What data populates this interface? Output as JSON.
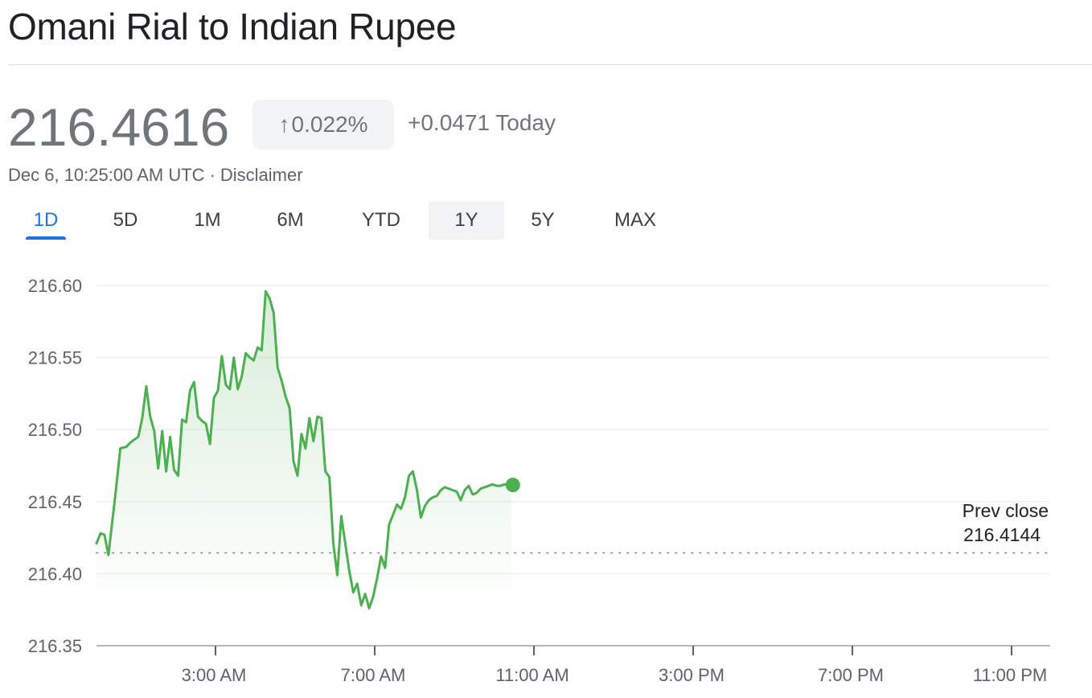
{
  "header": {
    "title": "Omani Rial to Indian Rupee"
  },
  "quote": {
    "price": "216.4616",
    "change_arrow": "↑",
    "change_percent": "0.022%",
    "change_abs": "+0.0471 Today",
    "timestamp": "Dec 6, 10:25:00 AM UTC",
    "separator": "·",
    "disclaimer": "Disclaimer",
    "change_color": "#70757a"
  },
  "ranges": [
    {
      "label": "1D",
      "state": "active"
    },
    {
      "label": "5D",
      "state": ""
    },
    {
      "label": "1M",
      "state": ""
    },
    {
      "label": "6M",
      "state": ""
    },
    {
      "label": "YTD",
      "state": ""
    },
    {
      "label": "1Y",
      "state": "highlighted"
    },
    {
      "label": "5Y",
      "state": ""
    },
    {
      "label": "MAX",
      "state": ""
    }
  ],
  "chart_data": {
    "type": "area",
    "line_color": "#4caf50",
    "accent_color": "#1a73e8",
    "ylim": [
      216.35,
      216.6
    ],
    "yticks": [
      "216.60",
      "216.55",
      "216.50",
      "216.45",
      "216.40",
      "216.35"
    ],
    "ytick_values": [
      216.6,
      216.55,
      216.5,
      216.45,
      216.4,
      216.35
    ],
    "xlim": [
      0,
      24
    ],
    "xticks": [
      "3:00 AM",
      "7:00 AM",
      "11:00 AM",
      "3:00 PM",
      "7:00 PM",
      "11:00 PM"
    ],
    "xtick_values": [
      3,
      7,
      11,
      15,
      19,
      23
    ],
    "prev_close_label": "Prev close",
    "prev_close_value": "216.4144",
    "prev_close": 216.4144,
    "series": [
      {
        "x": [
          0.0,
          0.1,
          0.2,
          0.3,
          0.45,
          0.6,
          0.75,
          0.85,
          0.95,
          1.05,
          1.15,
          1.25,
          1.35,
          1.45,
          1.55,
          1.65,
          1.75,
          1.85,
          1.95,
          2.05,
          2.15,
          2.25,
          2.35,
          2.45,
          2.55,
          2.65,
          2.75,
          2.85,
          2.95,
          3.05,
          3.15,
          3.25,
          3.35,
          3.45,
          3.55,
          3.65,
          3.75,
          3.85,
          3.95,
          4.05,
          4.15,
          4.25,
          4.35,
          4.45,
          4.55,
          4.65,
          4.75,
          4.85,
          4.95,
          5.05,
          5.15,
          5.25,
          5.35,
          5.45,
          5.55,
          5.65,
          5.75,
          5.85,
          5.95,
          6.05,
          6.15,
          6.25,
          6.35,
          6.45,
          6.55,
          6.65,
          6.75,
          6.85,
          6.95,
          7.05,
          7.15,
          7.25,
          7.35,
          7.45,
          7.55,
          7.65,
          7.75,
          7.85,
          7.95,
          8.05,
          8.15,
          8.25,
          8.35,
          8.45,
          8.55,
          8.65,
          8.75,
          8.85,
          8.95,
          9.05,
          9.15,
          9.25,
          9.35,
          9.45,
          9.55,
          9.65,
          9.75,
          9.85,
          9.95,
          10.05,
          10.15,
          10.25,
          10.35,
          10.42
        ],
        "y": [
          216.421,
          216.428,
          216.427,
          216.413,
          216.449,
          216.487,
          216.488,
          216.491,
          216.493,
          216.495,
          216.508,
          216.53,
          216.509,
          216.499,
          216.473,
          216.499,
          216.471,
          216.495,
          216.472,
          216.468,
          216.507,
          216.505,
          216.527,
          216.533,
          216.509,
          216.506,
          216.504,
          216.49,
          216.522,
          216.527,
          216.551,
          216.531,
          216.528,
          216.55,
          216.528,
          216.537,
          216.553,
          216.55,
          216.548,
          216.557,
          216.555,
          216.596,
          216.591,
          216.581,
          216.543,
          216.534,
          216.523,
          216.515,
          216.478,
          216.468,
          216.497,
          216.487,
          216.508,
          216.492,
          216.509,
          216.508,
          216.471,
          216.467,
          216.421,
          216.399,
          216.44,
          216.421,
          216.402,
          216.387,
          216.393,
          216.378,
          216.386,
          216.376,
          216.384,
          216.397,
          216.412,
          216.404,
          216.434,
          216.441,
          216.448,
          216.445,
          216.453,
          216.468,
          216.471,
          216.458,
          216.439,
          216.447,
          216.451,
          216.453,
          216.454,
          216.458,
          216.46,
          216.459,
          216.458,
          216.457,
          216.451,
          216.458,
          216.461,
          216.455,
          216.456,
          216.459,
          216.46,
          216.461,
          216.462,
          216.461,
          216.461,
          216.462,
          216.4616,
          216.4616
        ]
      }
    ]
  }
}
